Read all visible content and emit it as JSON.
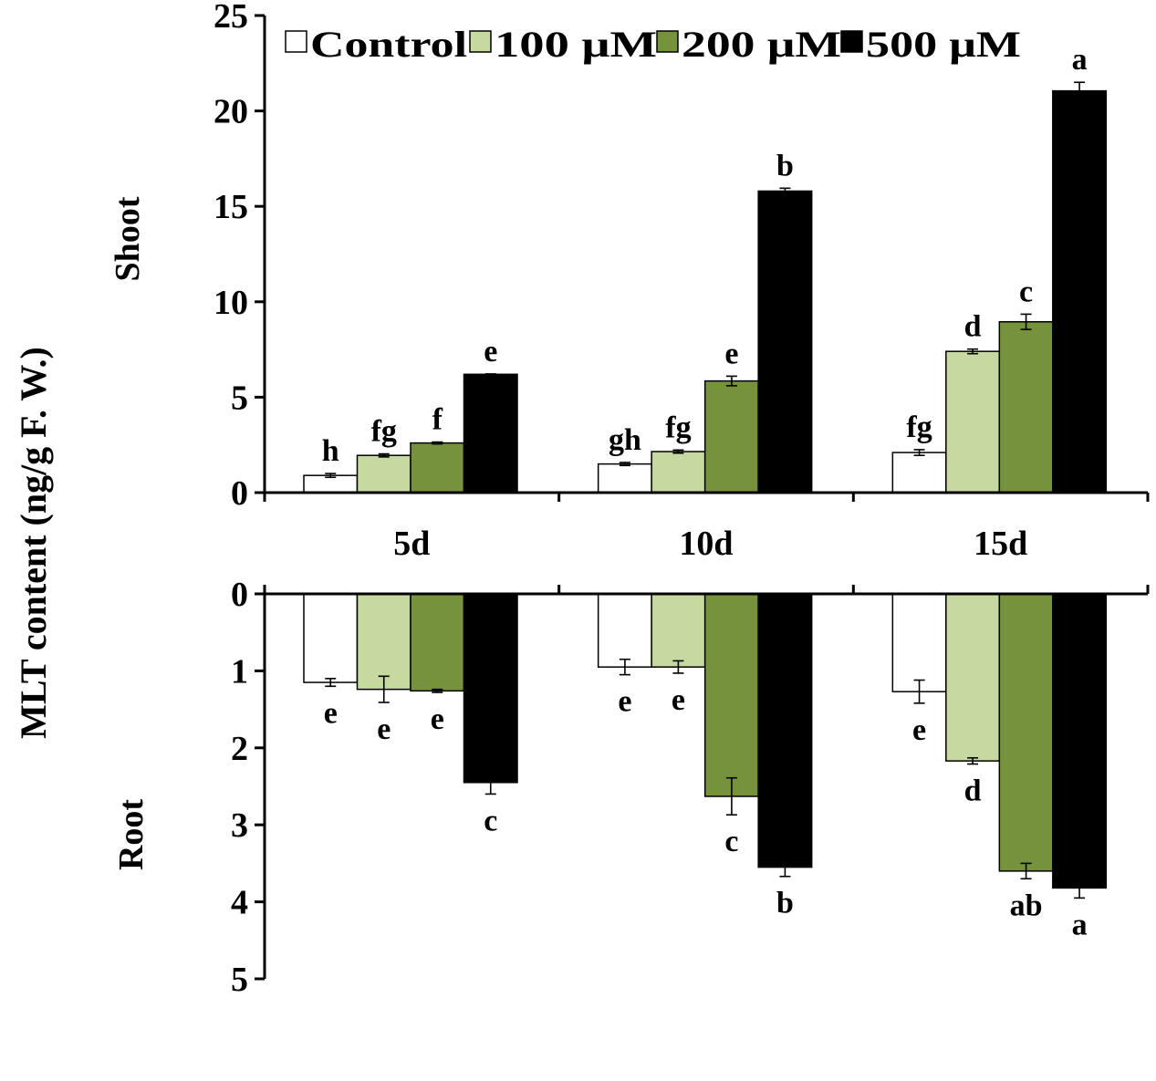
{
  "chart_data": {
    "type": "bar",
    "ylabel": "MLT content (ng/g F. W.)",
    "categories": [
      "5d",
      "10d",
      "15d"
    ],
    "colors": [
      "#ffffff",
      "#c6d9a0",
      "#76923c",
      "#000000"
    ],
    "legend": [
      "Control",
      "100 μM",
      "200 μM",
      "500 μM"
    ],
    "panels": [
      {
        "name": "Shoot",
        "ylim": [
          0,
          25
        ],
        "ticks": [
          "0",
          "5",
          "10",
          "15",
          "20",
          "25"
        ],
        "series": [
          {
            "name": "Control",
            "values": [
              0.9,
              1.5,
              2.1
            ],
            "errors": [
              0.1,
              0.08,
              0.15
            ],
            "letters": [
              "h",
              "gh",
              "fg"
            ]
          },
          {
            "name": "100 μM",
            "values": [
              1.95,
              2.15,
              7.4
            ],
            "errors": [
              0.08,
              0.08,
              0.12
            ],
            "letters": [
              "fg",
              "fg",
              "d"
            ]
          },
          {
            "name": "200 μM",
            "values": [
              2.6,
              5.85,
              8.95
            ],
            "errors": [
              0.05,
              0.25,
              0.4
            ],
            "letters": [
              "f",
              "e",
              "c"
            ]
          },
          {
            "name": "500 μM",
            "values": [
              6.2,
              15.8,
              21.05
            ],
            "errors": [
              0.02,
              0.15,
              0.45
            ],
            "letters": [
              "e",
              "b",
              "a"
            ]
          }
        ]
      },
      {
        "name": "Root",
        "ylim": [
          0,
          5
        ],
        "ticks": [
          "0",
          "1",
          "2",
          "3",
          "4",
          "5"
        ],
        "series": [
          {
            "name": "Control",
            "values": [
              1.15,
              0.95,
              1.27
            ],
            "errors": [
              0.05,
              0.1,
              0.15
            ],
            "letters": [
              "e",
              "e",
              "e"
            ]
          },
          {
            "name": "100 μM",
            "values": [
              1.24,
              0.95,
              2.17
            ],
            "errors": [
              0.17,
              0.08,
              0.04
            ],
            "letters": [
              "e",
              "e",
              "d"
            ]
          },
          {
            "name": "200 μM",
            "values": [
              1.26,
              2.63,
              3.6
            ],
            "errors": [
              0.02,
              0.24,
              0.1
            ],
            "letters": [
              "e",
              "c",
              "ab"
            ]
          },
          {
            "name": "500 μM",
            "values": [
              2.45,
              3.55,
              3.82
            ],
            "errors": [
              0.15,
              0.12,
              0.13
            ],
            "letters": [
              "c",
              "b",
              "a"
            ]
          }
        ]
      }
    ]
  }
}
